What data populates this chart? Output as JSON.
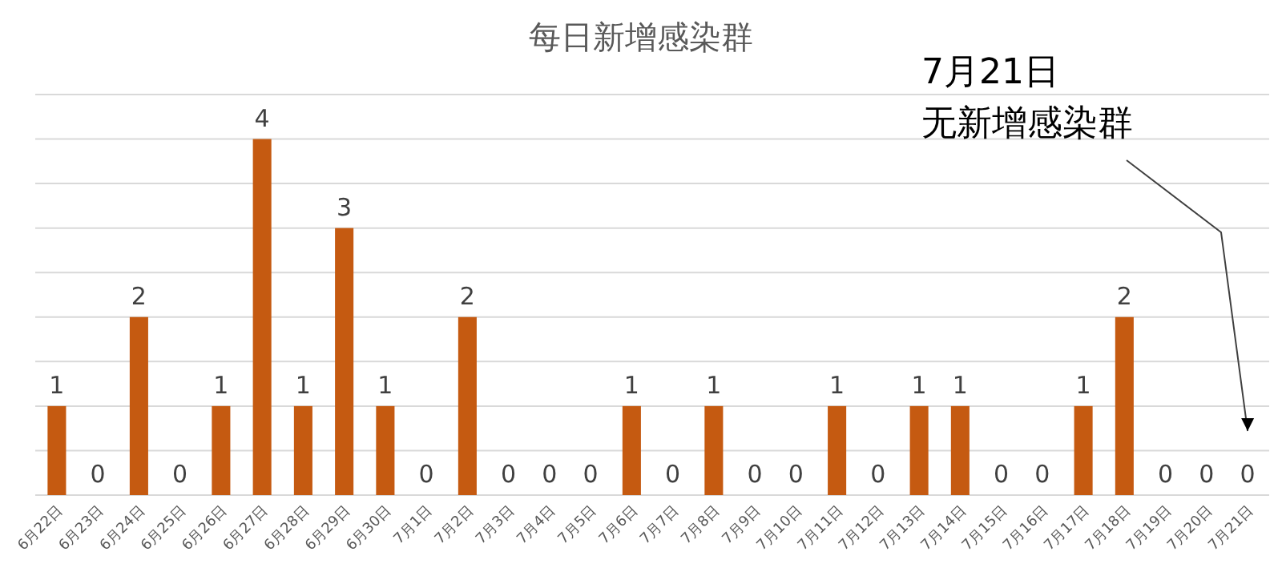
{
  "chart_data": {
    "type": "bar",
    "title": "每日新增感染群",
    "categories": [
      "6月22日",
      "6月23日",
      "6月24日",
      "6月25日",
      "6月26日",
      "6月27日",
      "6月28日",
      "6月29日",
      "6月30日",
      "7月1日",
      "7月2日",
      "7月3日",
      "7月4日",
      "7月5日",
      "7月6日",
      "7月7日",
      "7月8日",
      "7月9日",
      "7月10日",
      "7月11日",
      "7月12日",
      "7月13日",
      "7月14日",
      "7月15日",
      "7月16日",
      "7月17日",
      "7月18日",
      "7月19日",
      "7月20日",
      "7月21日"
    ],
    "values": [
      1,
      0,
      2,
      0,
      1,
      4,
      1,
      3,
      1,
      0,
      2,
      0,
      0,
      0,
      1,
      0,
      1,
      0,
      0,
      1,
      0,
      1,
      1,
      0,
      0,
      1,
      2,
      0,
      0,
      0
    ],
    "color": "#c55a11",
    "ylim": [
      0,
      4.5
    ],
    "yticks": [
      {
        "value": 0,
        "label": null
      },
      {
        "value": 0.5,
        "label": null
      },
      {
        "value": 1,
        "label": null
      },
      {
        "value": 1.5,
        "label": null
      },
      {
        "value": 2,
        "label": null
      },
      {
        "value": 2.5,
        "label": null
      },
      {
        "value": 3,
        "label": null
      },
      {
        "value": 3.5,
        "label": null
      },
      {
        "value": 4,
        "label": null
      },
      {
        "value": 4.5,
        "label": null
      }
    ],
    "grid": "y",
    "tick_labels": "x",
    "data_labels": true,
    "annotations": [
      "7月21日",
      "无新增感染群"
    ]
  }
}
